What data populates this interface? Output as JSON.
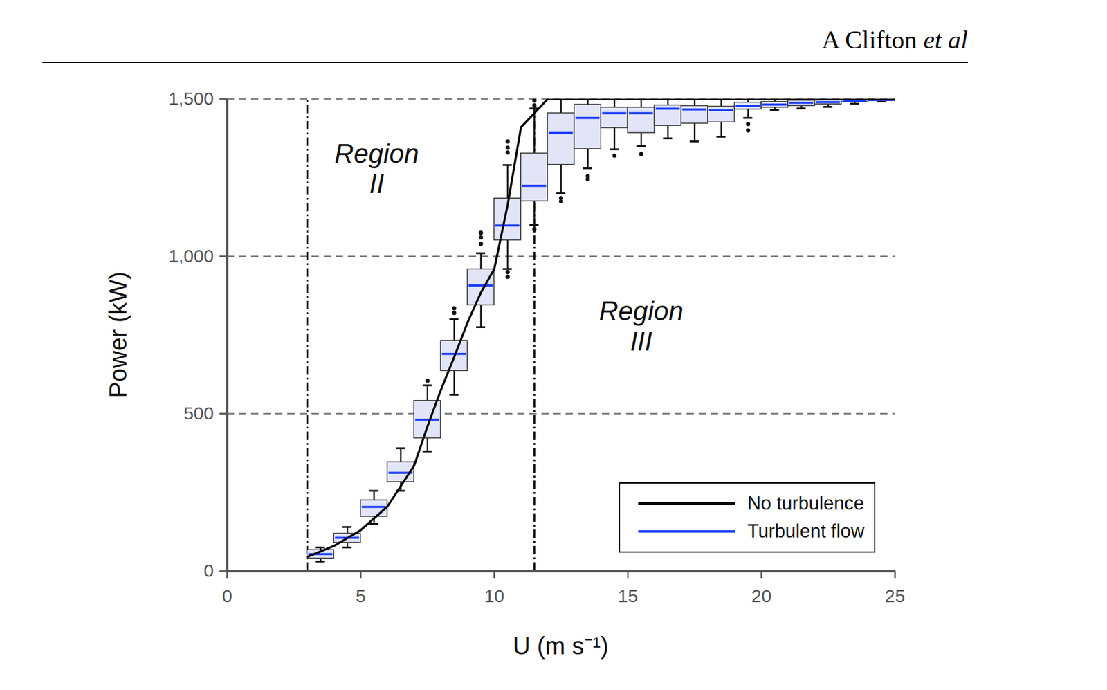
{
  "running_head": {
    "author": "A Clifton",
    "suffix": "et al"
  },
  "chart_data": {
    "type": "box",
    "x_label": "U (m s⁻¹)",
    "y_label": "Power (kW)",
    "xlim": [
      0,
      25
    ],
    "xticks": [
      0,
      5,
      10,
      15,
      20,
      25
    ],
    "ylim": [
      0,
      1500
    ],
    "yticks": [
      0,
      500,
      1000,
      1500
    ],
    "grid": true,
    "legend": "lower right",
    "vlines": [
      3,
      11.5
    ],
    "annotations": [
      {
        "text": "Region\nII",
        "x": 5.6,
        "y": 1280
      },
      {
        "text": "Region\nIII",
        "x": 15.5,
        "y": 780
      }
    ],
    "series": [
      {
        "name": "No turbulence",
        "type": "line",
        "color": "#000000",
        "line_style": "solid",
        "x": [
          3,
          4,
          5,
          6,
          7,
          7.5,
          8,
          8.5,
          9,
          9.5,
          10,
          10.5,
          11,
          11.5,
          12,
          25
        ],
        "values": [
          45,
          80,
          130,
          205,
          335,
          460,
          575,
          680,
          790,
          885,
          960,
          1163,
          1410,
          1455,
          1500,
          1500
        ]
      },
      {
        "name": "Turbulent flow",
        "type": "box",
        "color": "#1a3cff",
        "bins": [
          3,
          4,
          5,
          6,
          7,
          8,
          9,
          10,
          11,
          12,
          13,
          14,
          15,
          16,
          17,
          18,
          19,
          20,
          21,
          22,
          23,
          24,
          25
        ],
        "median": [
          54,
          106,
          204,
          312,
          481,
          690,
          907,
          1098,
          1224,
          1392,
          1440,
          1455,
          1455,
          1469,
          1467,
          1464,
          1478,
          1482,
          1488,
          1490,
          1494,
          1497
        ],
        "q1": [
          40,
          90,
          173,
          283,
          422,
          636,
          845,
          1051,
          1175,
          1291,
          1341,
          1408,
          1392,
          1415,
          1422,
          1426,
          1467,
          1473,
          1478,
          1483,
          1490,
          1494
        ],
        "q3": [
          67,
          119,
          225,
          346,
          541,
          732,
          959,
          1184,
          1327,
          1455,
          1482,
          1473,
          1473,
          1480,
          1478,
          1476,
          1489,
          1491,
          1495,
          1496,
          1498,
          1499
        ],
        "whisker_low": [
          30,
          75,
          150,
          255,
          380,
          560,
          775,
          960,
          1100,
          1200,
          1280,
          1340,
          1350,
          1375,
          1365,
          1380,
          1440,
          1465,
          1470,
          1475,
          1485,
          1492
        ],
        "whisker_high": [
          75,
          140,
          255,
          390,
          590,
          800,
          1010,
          1290,
          1470,
          1500,
          1500,
          1500,
          1500,
          1500,
          1500,
          1500,
          1500,
          1500,
          1500,
          1500,
          1500,
          1500
        ],
        "outliers": [
          [],
          [],
          [],
          [],
          [
            605
          ],
          [
            820,
            835
          ],
          [
            1040,
            1060,
            1075
          ],
          [
            935,
            950,
            1330,
            1345,
            1365
          ],
          [
            1085,
            1480,
            1495
          ],
          [
            1175,
            1185
          ],
          [
            1245,
            1255
          ],
          [
            1320
          ],
          [
            1325
          ],
          [],
          [],
          [],
          [
            1400,
            1420
          ],
          [],
          [],
          [],
          [],
          []
        ]
      }
    ]
  }
}
